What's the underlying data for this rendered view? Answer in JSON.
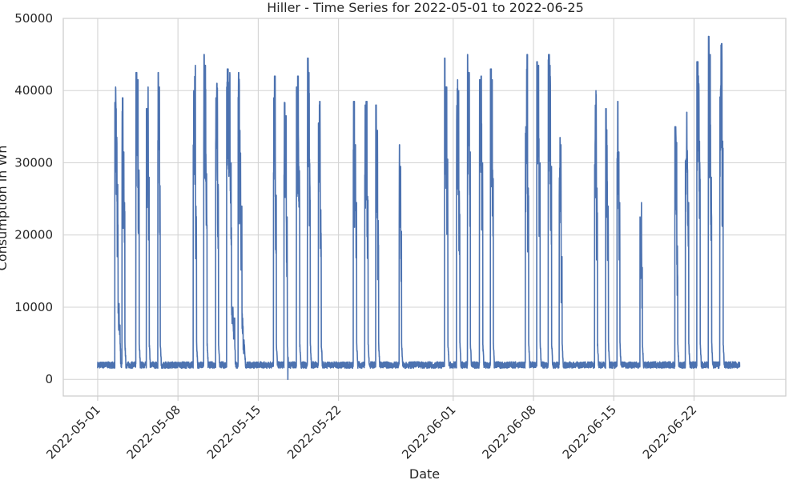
{
  "chart_data": {
    "type": "line",
    "title": "Hiller - Time Series for 2022-05-01 to 2022-06-25",
    "xlabel": "Date",
    "ylabel": "Consumption in Wh",
    "x_range": [
      "2022-04-28",
      "2022-06-30"
    ],
    "ylim": [
      -2300,
      50000
    ],
    "yticks": [
      0,
      10000,
      20000,
      30000,
      40000,
      50000
    ],
    "ytick_labels": [
      "0",
      "10000",
      "20000",
      "30000",
      "40000",
      "50000"
    ],
    "xticks": [
      "2022-05-01",
      "2022-05-08",
      "2022-05-15",
      "2022-05-22",
      "2022-06-01",
      "2022-06-08",
      "2022-06-15",
      "2022-06-22"
    ],
    "grid": true,
    "series": [
      {
        "color": "#4c72b0",
        "baseline_wh": 2000,
        "active_periods": [
          {
            "date": "2022-05-02",
            "start_hour": 12,
            "end_hour": 23,
            "peaks": [
              40500,
              37500,
              27000,
              10500,
              8000
            ]
          },
          {
            "date": "2022-05-03",
            "start_hour": 3,
            "end_hour": 9,
            "peaks": [
              39000,
              31500,
              24500
            ]
          },
          {
            "date": "2022-05-04",
            "start_hour": 8,
            "end_hour": 15,
            "peaks": [
              42500,
              41500,
              29000
            ]
          },
          {
            "date": "2022-05-05",
            "start_hour": 6,
            "end_hour": 12,
            "peaks": [
              37500,
              40500,
              28000
            ]
          },
          {
            "date": "2022-05-06",
            "start_hour": 6,
            "end_hour": 11,
            "peaks": [
              42500,
              40500,
              30000
            ]
          },
          {
            "date": "2022-05-09",
            "start_hour": 8,
            "end_hour": 15,
            "peaks": [
              40000,
              43500,
              24000
            ]
          },
          {
            "date": "2022-05-10",
            "start_hour": 6,
            "end_hour": 13,
            "peaks": [
              45000,
              43500,
              28500
            ]
          },
          {
            "date": "2022-05-11",
            "start_hour": 7,
            "end_hour": 13,
            "peaks": [
              39000,
              41000,
              27000
            ]
          },
          {
            "date": "2022-05-12",
            "start_hour": 6,
            "end_hour": 23,
            "peaks": [
              43000,
              42500,
              30000,
              10000,
              8500
            ]
          },
          {
            "date": "2022-05-13",
            "start_hour": 6,
            "end_hour": 19,
            "peaks": [
              42500,
              34500,
              24000,
              9500,
              5500
            ]
          },
          {
            "date": "2022-05-16",
            "start_hour": 8,
            "end_hour": 14,
            "peaks": [
              39000,
              42000,
              25500
            ]
          },
          {
            "date": "2022-05-17",
            "start_hour": 6,
            "end_hour": 13,
            "peaks": [
              40500,
              36500,
              22500
            ]
          },
          {
            "date": "2022-05-18",
            "start_hour": 8,
            "end_hour": 15,
            "peaks": [
              40500,
              42000,
              29500
            ]
          },
          {
            "date": "2022-05-19",
            "start_hour": 7,
            "end_hour": 13,
            "peaks": [
              44500,
              42500,
              30500
            ]
          },
          {
            "date": "2022-05-20",
            "start_hour": 6,
            "end_hour": 12,
            "peaks": [
              35500,
              38500,
              23500
            ]
          },
          {
            "date": "2022-05-23",
            "start_hour": 7,
            "end_hour": 14,
            "peaks": [
              38500,
              32500,
              24500
            ]
          },
          {
            "date": "2022-05-24",
            "start_hour": 7,
            "end_hour": 14,
            "peaks": [
              38000,
              38500,
              25500
            ]
          },
          {
            "date": "2022-05-25",
            "start_hour": 6,
            "end_hour": 12,
            "peaks": [
              38000,
              34500,
              22000
            ]
          },
          {
            "date": "2022-05-27",
            "start_hour": 7,
            "end_hour": 12,
            "peaks": [
              32500,
              29500,
              20500
            ]
          },
          {
            "date": "2022-05-31",
            "start_hour": 6,
            "end_hour": 13,
            "peaks": [
              44500,
              40500,
              30500
            ]
          },
          {
            "date": "2022-06-01",
            "start_hour": 7,
            "end_hour": 14,
            "peaks": [
              41500,
              40000,
              27000
            ]
          },
          {
            "date": "2022-06-02",
            "start_hour": 6,
            "end_hour": 12,
            "peaks": [
              45000,
              42500,
              31500
            ]
          },
          {
            "date": "2022-06-03",
            "start_hour": 7,
            "end_hour": 14,
            "peaks": [
              41500,
              42000,
              30000
            ]
          },
          {
            "date": "2022-06-04",
            "start_hour": 6,
            "end_hour": 12,
            "peaks": [
              43000,
              41500,
              29000
            ]
          },
          {
            "date": "2022-06-07",
            "start_hour": 7,
            "end_hour": 14,
            "peaks": [
              35000,
              45000,
              26500
            ]
          },
          {
            "date": "2022-06-08",
            "start_hour": 7,
            "end_hour": 14,
            "peaks": [
              44000,
              43500,
              30000
            ]
          },
          {
            "date": "2022-06-09",
            "start_hour": 7,
            "end_hour": 14,
            "peaks": [
              45000,
              43500,
              29500
            ]
          },
          {
            "date": "2022-06-10",
            "start_hour": 6,
            "end_hour": 12,
            "peaks": [
              33500,
              32500,
              17000
            ]
          },
          {
            "date": "2022-06-13",
            "start_hour": 8,
            "end_hour": 14,
            "peaks": [
              38000,
              40000,
              26500
            ]
          },
          {
            "date": "2022-06-14",
            "start_hour": 7,
            "end_hour": 13,
            "peaks": [
              37500,
              35000,
              24000
            ]
          },
          {
            "date": "2022-06-15",
            "start_hour": 7,
            "end_hour": 13,
            "peaks": [
              38500,
              31500,
              24500
            ]
          },
          {
            "date": "2022-06-17",
            "start_hour": 7,
            "end_hour": 12,
            "peaks": [
              22500,
              24500,
              15500
            ]
          },
          {
            "date": "2022-06-20",
            "start_hour": 8,
            "end_hour": 14,
            "peaks": [
              35000,
              34000,
              18500
            ]
          },
          {
            "date": "2022-06-21",
            "start_hour": 6,
            "end_hour": 13,
            "peaks": [
              30500,
              37000,
              24500
            ]
          },
          {
            "date": "2022-06-22",
            "start_hour": 6,
            "end_hour": 13,
            "peaks": [
              44000,
              47500,
              33000
            ]
          },
          {
            "date": "2022-06-23",
            "start_hour": 6,
            "end_hour": 13,
            "peaks": [
              47500,
              45000,
              28000
            ]
          },
          {
            "date": "2022-06-24",
            "start_hour": 6,
            "end_hour": 13,
            "peaks": [
              42000,
              46500,
              33000
            ]
          }
        ],
        "dips": [
          {
            "date": "2022-05-17",
            "hour": 14,
            "value": 0
          }
        ],
        "end_date": "2022-06-25"
      }
    ]
  }
}
